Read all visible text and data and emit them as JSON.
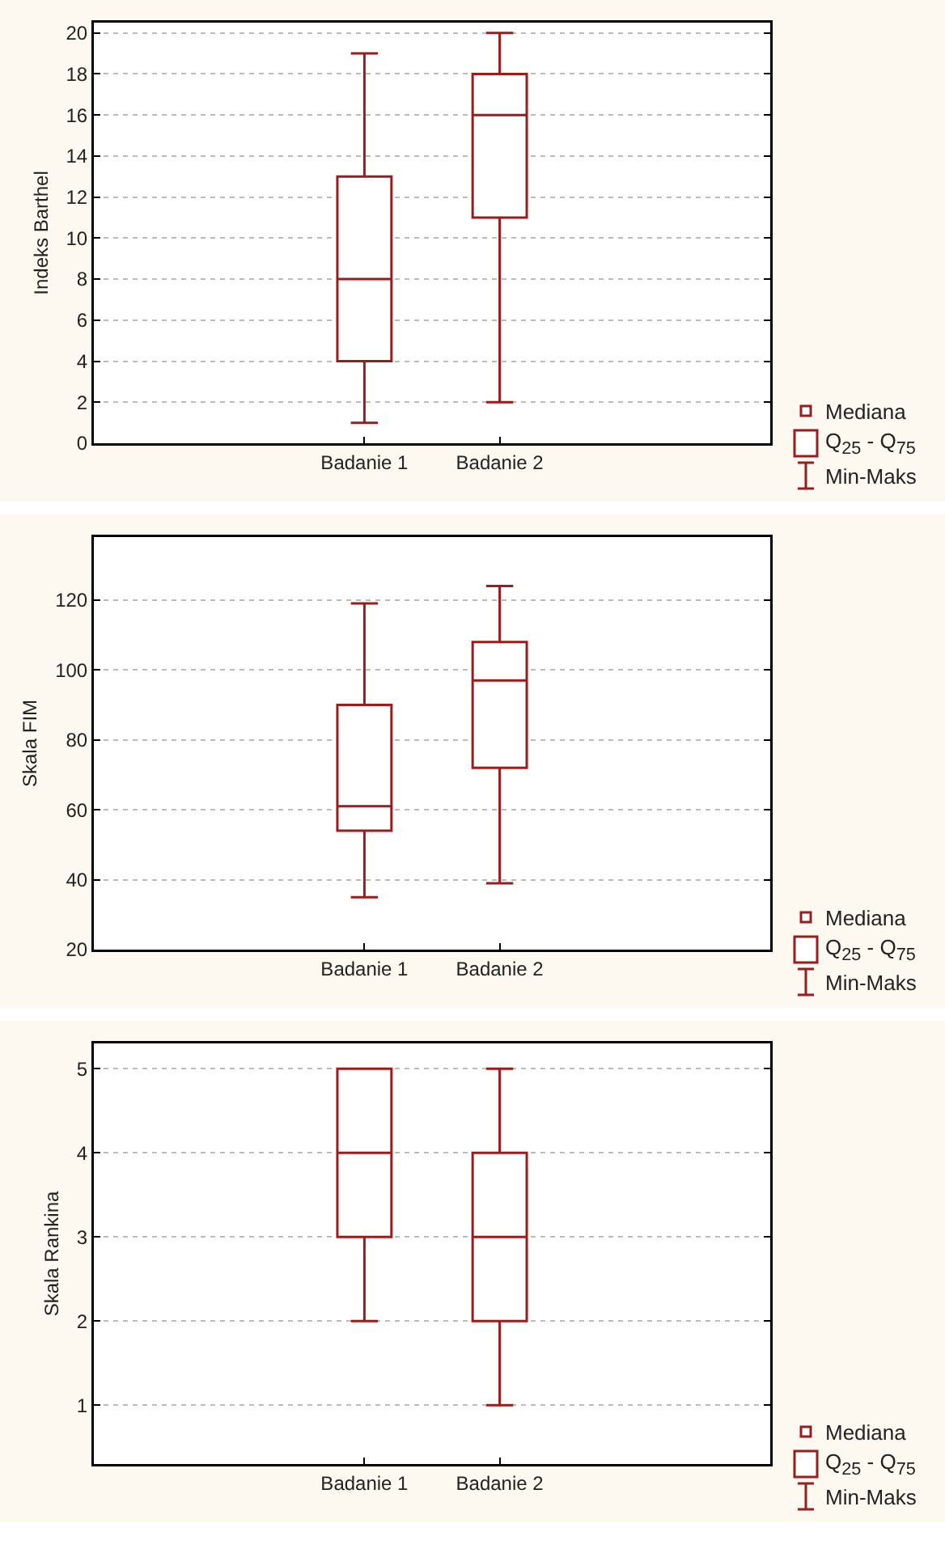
{
  "chart_data": [
    {
      "type": "box",
      "ylabel": "Indeks Barthel",
      "categories": [
        "Badanie 1",
        "Badanie 2"
      ],
      "color": "#9b1c1c",
      "boxes": [
        {
          "low": 1,
          "q1": 4,
          "median": 8,
          "q3": 13,
          "high": 19
        },
        {
          "low": 2,
          "q1": 11,
          "median": 16,
          "q3": 18,
          "high": 20
        }
      ],
      "ylim": [
        0,
        20.5
      ],
      "yticks": [
        0,
        2,
        4,
        6,
        8,
        10,
        12,
        14,
        16,
        18,
        20
      ],
      "grid": "y",
      "annotations": [
        "Mediana",
        "Q$_{25}$ - Q$_{75}$",
        "Min-Maks"
      ]
    },
    {
      "type": "box",
      "ylabel": "Skala FIM",
      "categories": [
        "Badanie 1",
        "Badanie 2"
      ],
      "color": "#9b1c1c",
      "boxes": [
        {
          "low": 35,
          "q1": 54,
          "median": 61,
          "q3": 90,
          "high": 119
        },
        {
          "low": 39,
          "q1": 72,
          "median": 97,
          "q3": 108,
          "high": 124
        }
      ],
      "ylim": [
        20,
        138
      ],
      "yticks": [
        20,
        40,
        60,
        80,
        100,
        120
      ],
      "grid": "y",
      "annotations": [
        "Mediana",
        "Q$_{25}$ - Q$_{75}$",
        "Min-Maks"
      ]
    },
    {
      "type": "box",
      "ylabel": "Skala Rankina",
      "categories": [
        "Badanie 1",
        "Badanie 2"
      ],
      "color": "#9b1c1c",
      "boxes": [
        {
          "low": 2,
          "q1": 3,
          "median": 4,
          "q3": 5,
          "high": 5
        },
        {
          "low": 1,
          "q1": 2,
          "median": 3,
          "q3": 4,
          "high": 5
        }
      ],
      "ylim": [
        0.3,
        5.3
      ],
      "yticks": [
        1,
        2,
        3,
        4,
        5
      ],
      "grid": "y",
      "annotations": [
        "Mediana",
        "Q$_{25}$ - Q$_{75}$",
        "Min-Maks"
      ]
    }
  ]
}
